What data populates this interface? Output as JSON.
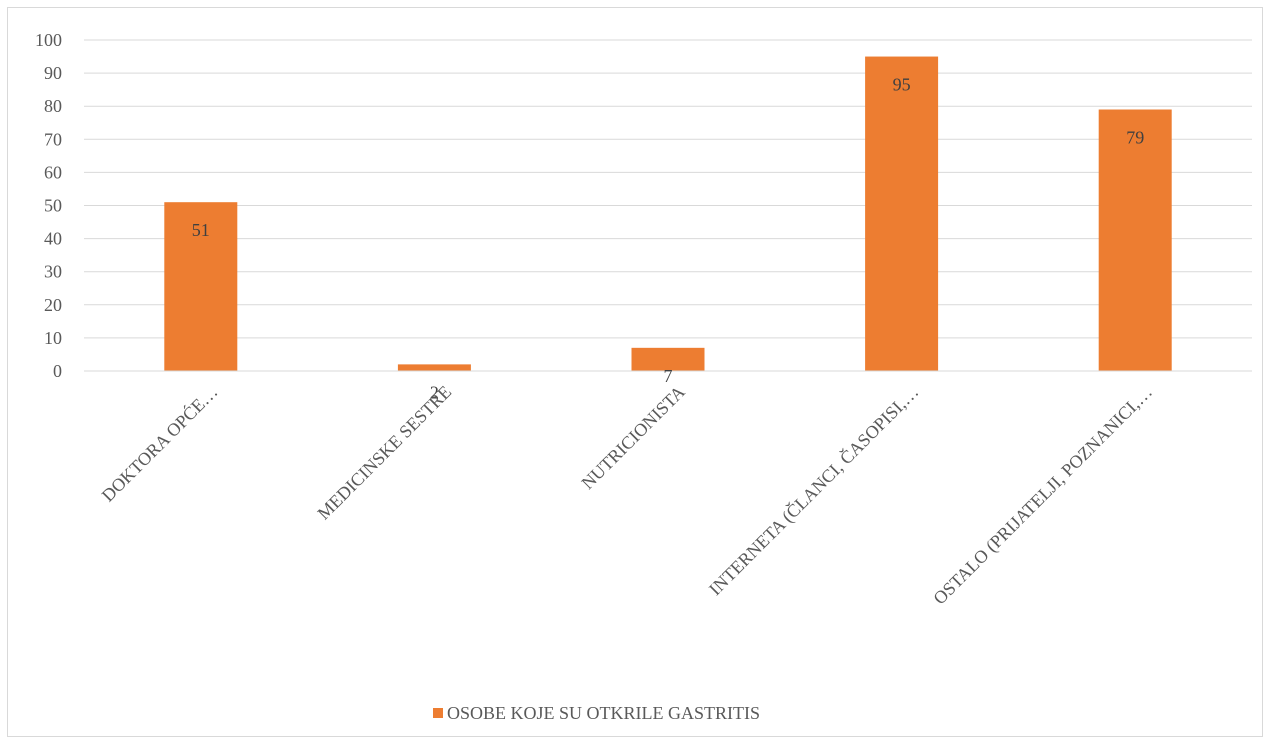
{
  "chart_data": {
    "type": "bar",
    "categories": [
      "DOKTORA OPĆE…",
      "MEDICINSKE SESTRE",
      "NUTRICIONISTA",
      "INTERNETA (ČLANCI, ČASOPISI,…",
      "OSTALO (PRIJATELJI, POZNANICI,…"
    ],
    "series": [
      {
        "name": "OSOBE KOJE SU OTKRILE GASTRITIS",
        "values": [
          51,
          2,
          7,
          95,
          79
        ],
        "color": "#ED7D31"
      }
    ],
    "ylim": [
      0,
      100
    ],
    "yticks": [
      0,
      10,
      20,
      30,
      40,
      50,
      60,
      70,
      80,
      90,
      100
    ],
    "grid": true,
    "legend": "bottom",
    "data_labels": true
  }
}
